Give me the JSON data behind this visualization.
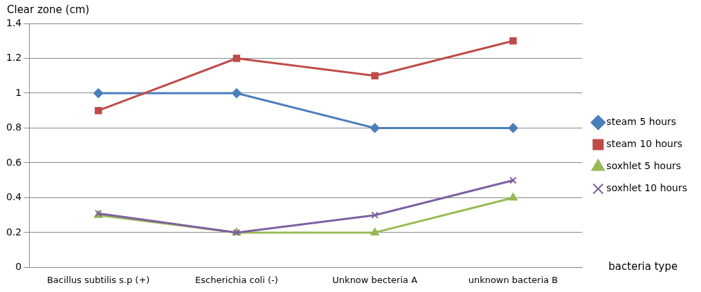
{
  "chart_data": {
    "type": "line",
    "ylabel": "Clear zone (cm)",
    "xlabel": "bacteria type",
    "categories": [
      "Bacillus subtilis s.p (+)",
      "Escherichia coli (-)",
      "Unknow becteria A",
      "unknown bacteria B"
    ],
    "series": [
      {
        "name": "steam 5 hours",
        "color": "#4a7ebb",
        "marker": "diamond",
        "values": [
          1,
          1,
          0.8,
          0.8
        ]
      },
      {
        "name": "steam 10 hours",
        "color": "#be4b48",
        "marker": "square",
        "values": [
          0.9,
          1.2,
          1.1,
          1.3
        ]
      },
      {
        "name": "soxhlet 5 hours",
        "color": "#98b954",
        "marker": "triangle",
        "values": [
          0.3,
          0.2,
          0.2,
          0.4
        ]
      },
      {
        "name": "soxhlet 10 hours",
        "color": "#7d60a0",
        "marker": "cross",
        "values": [
          0.31,
          0.2,
          0.3,
          0.5
        ]
      }
    ],
    "ylim": [
      0,
      1.4
    ],
    "yticks": [
      0,
      0.2,
      0.4,
      0.6,
      0.8,
      1,
      1.2,
      1.4
    ],
    "grid": "y",
    "legend": "right",
    "line_style": "solid"
  }
}
